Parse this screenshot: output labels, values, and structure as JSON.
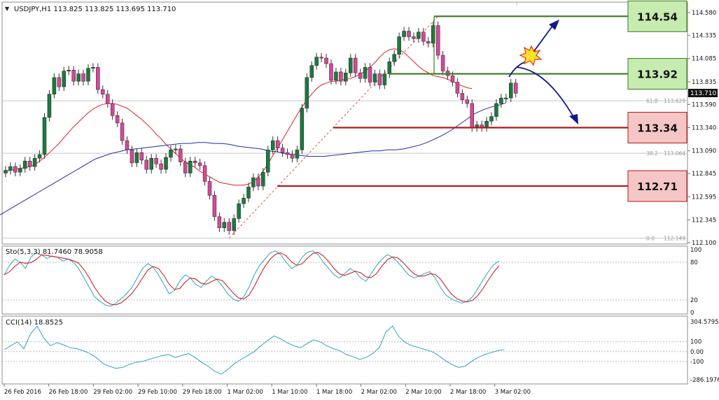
{
  "header": {
    "symbol_info": "USDJPY,H1  113.825 113.825 113.695 113.710"
  },
  "price_axis": {
    "ticks": [
      "114.580",
      "114.335",
      "114.085",
      "113.835",
      "113.590",
      "113.340",
      "113.090",
      "112.845",
      "112.595",
      "112.345",
      "112.100"
    ],
    "current_price": "113.710"
  },
  "time_axis": {
    "labels": [
      "26 Feb 2016",
      "26 Feb 18:00",
      "29 Feb 02:00",
      "29 Feb 10:00",
      "29 Feb 18:00",
      "1 Mar 02:00",
      "1 Mar 10:00",
      "1 Mar 18:00",
      "2 Mar 02:00",
      "2 Mar 10:00",
      "2 Mar 18:00",
      "3 Mar 02:00"
    ]
  },
  "levels": [
    {
      "price": 114.54,
      "label": "114.54",
      "kind": "resistance"
    },
    {
      "price": 113.92,
      "label": "113.92",
      "kind": "resistance"
    },
    {
      "price": 113.34,
      "label": "113.34",
      "kind": "support"
    },
    {
      "price": 112.71,
      "label": "112.71",
      "kind": "support"
    }
  ],
  "fibonacci": {
    "labels": [
      {
        "text": "61.8",
        "value": "113.629"
      },
      {
        "text": "38.2",
        "value": "113.064"
      },
      {
        "text": "0.0",
        "value": "112.149"
      }
    ]
  },
  "stochastic": {
    "header": "Sto(5,3,3) 81.7460 78.9058",
    "ticks": [
      "100",
      "80",
      "20",
      "0"
    ]
  },
  "cci": {
    "header": "CCI(14) 18.8525",
    "ticks": [
      "304.5795",
      "100",
      "0.00",
      "-100",
      "-286.1976"
    ]
  },
  "colors": {
    "bull": "#1b7a3e",
    "bear": "#d6479b",
    "ma_fast": "#e02020",
    "ma_slow": "#1f2bb0",
    "stoch_main": "#2aa6c0",
    "stoch_signal": "#d01010",
    "cci_line": "#2aa6c0",
    "resistance_fill": "#c6ecb0",
    "resistance_line": "#3b7a1e",
    "support_fill": "#f6c6c6",
    "support_line": "#b01818",
    "arrow": "#111a8c"
  },
  "chart_data": {
    "type": "candlestick",
    "symbol": "USDJPY",
    "timeframe": "H1",
    "y_range": [
      112.1,
      114.58
    ],
    "ohlc_last": {
      "open": 113.825,
      "high": 113.825,
      "low": 113.695,
      "close": 113.71
    },
    "closes": [
      112.88,
      112.92,
      112.86,
      112.9,
      112.98,
      112.92,
      113.01,
      113.05,
      113.45,
      113.7,
      113.88,
      113.78,
      113.95,
      113.96,
      113.84,
      113.92,
      113.84,
      113.98,
      113.99,
      113.75,
      113.7,
      113.6,
      113.47,
      113.39,
      113.2,
      113.1,
      112.96,
      113.07,
      112.99,
      112.89,
      113.01,
      112.95,
      112.89,
      113.02,
      113.1,
      113.11,
      112.97,
      112.85,
      112.98,
      112.96,
      112.93,
      112.76,
      112.61,
      112.38,
      112.26,
      112.32,
      112.23,
      112.36,
      112.52,
      112.58,
      112.7,
      112.8,
      112.71,
      112.86,
      113.1,
      113.2,
      113.12,
      113.07,
      113.05,
      113.01,
      113.1,
      113.55,
      113.88,
      114.01,
      114.1,
      114.09,
      114.03,
      113.85,
      113.94,
      113.84,
      113.93,
      114.09,
      113.93,
      113.87,
      113.99,
      113.83,
      113.92,
      113.8,
      113.92,
      114.05,
      114.13,
      114.32,
      114.38,
      114.32,
      114.3,
      114.37,
      114.27,
      114.25,
      114.44,
      114.12,
      113.95,
      113.9,
      113.83,
      113.71,
      113.64,
      113.6,
      113.34,
      113.37,
      113.34,
      113.41,
      113.46,
      113.6,
      113.66,
      113.66,
      113.82,
      113.71
    ],
    "series": [
      {
        "name": "MA fast",
        "values": [
          112.87,
          112.88,
          112.89,
          112.9,
          112.91,
          112.92,
          112.94,
          112.98,
          113.02,
          113.07,
          113.12,
          113.17,
          113.23,
          113.29,
          113.35,
          113.4,
          113.45,
          113.5,
          113.54,
          113.57,
          113.59,
          113.6,
          113.6,
          113.59,
          113.57,
          113.55,
          113.51,
          113.47,
          113.43,
          113.38,
          113.33,
          113.27,
          113.22,
          113.16,
          113.11,
          113.06,
          113.01,
          112.97,
          112.94,
          112.91,
          112.87,
          112.84,
          112.81,
          112.78,
          112.75,
          112.74,
          112.73,
          112.72,
          112.72,
          112.72,
          112.73,
          112.76,
          112.8,
          112.87,
          112.95,
          113.04,
          113.12,
          113.21,
          113.3,
          113.39,
          113.48,
          113.56,
          113.64,
          113.7,
          113.76,
          113.8,
          113.82,
          113.84,
          113.84,
          113.85,
          113.86,
          113.87,
          113.89,
          113.92,
          113.95,
          113.99,
          114.04,
          114.1,
          114.15,
          114.18,
          114.19,
          114.18,
          114.15,
          114.1,
          114.05,
          114.0,
          113.96,
          113.93,
          113.9,
          113.89,
          113.88,
          113.86,
          113.84,
          113.81,
          113.79,
          113.77,
          113.76
        ]
      },
      {
        "name": "MA slow",
        "values": [
          112.4,
          112.45,
          112.5,
          112.55,
          112.6,
          112.65,
          112.7,
          112.75,
          112.8,
          112.85,
          112.9,
          112.95,
          113.0,
          113.03,
          113.06,
          113.08,
          113.1,
          113.11,
          113.12,
          113.13,
          113.14,
          113.15,
          113.16,
          113.17,
          113.17,
          113.18,
          113.18,
          113.17,
          113.17,
          113.16,
          113.14,
          113.13,
          113.12,
          113.11,
          113.09,
          113.08,
          113.06,
          113.05,
          113.04,
          113.03,
          113.03,
          113.03,
          113.04,
          113.05,
          113.06,
          113.07,
          113.08,
          113.09,
          113.09,
          113.1,
          113.1,
          113.11,
          113.13,
          113.15,
          113.18,
          113.22,
          113.26,
          113.31,
          113.37,
          113.43,
          113.49,
          113.53,
          113.56,
          113.58,
          113.61
        ]
      }
    ],
    "stochastic": {
      "main_last": 81.746,
      "signal_last": 78.9058,
      "levels": [
        20,
        80
      ],
      "range": [
        0,
        100
      ]
    },
    "cci": {
      "last": 18.8525,
      "levels": [
        -100,
        0,
        100
      ],
      "range": [
        -286.1976,
        304.5795
      ]
    }
  }
}
